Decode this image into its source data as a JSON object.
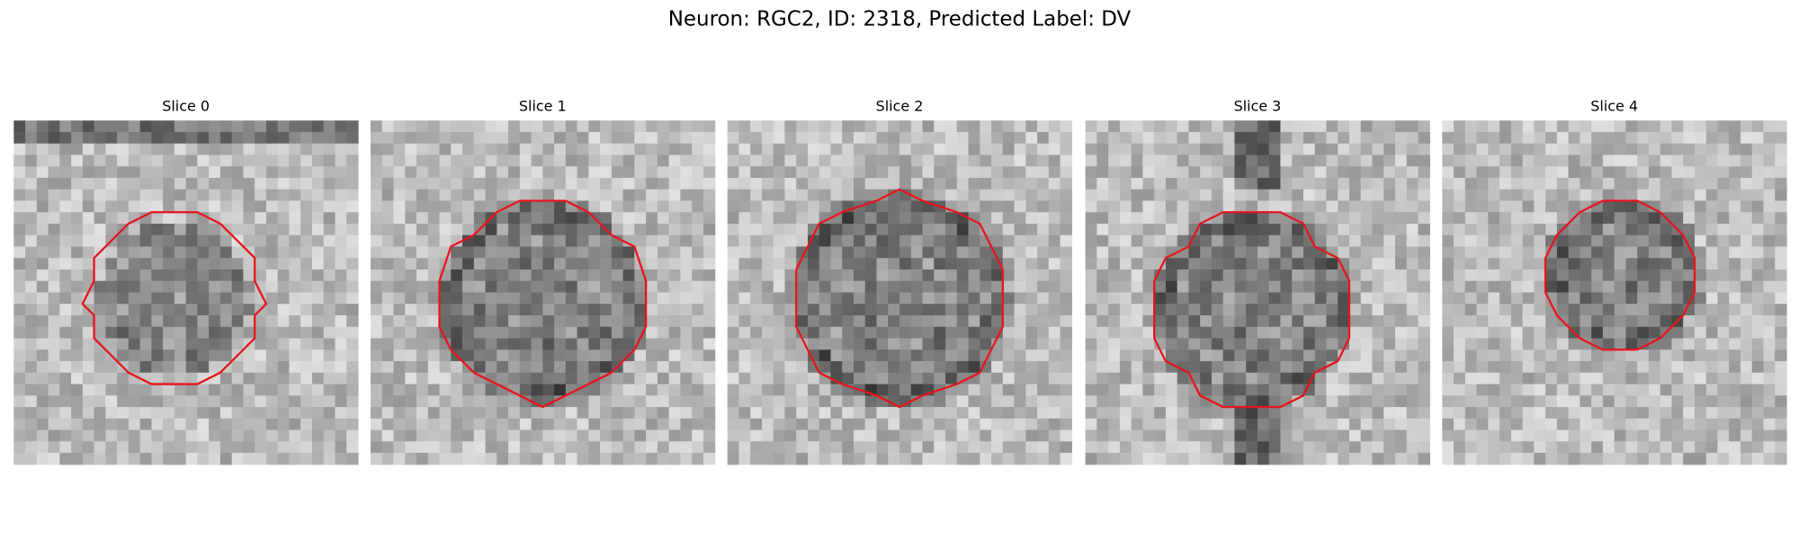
{
  "header": {
    "title": "Neuron: RGC2, ID: 2318, Predicted Label: DV"
  },
  "panels": [
    {
      "title": "Slice 0"
    },
    {
      "title": "Slice 1"
    },
    {
      "title": "Slice 2"
    },
    {
      "title": "Slice 3"
    },
    {
      "title": "Slice 4"
    }
  ]
}
